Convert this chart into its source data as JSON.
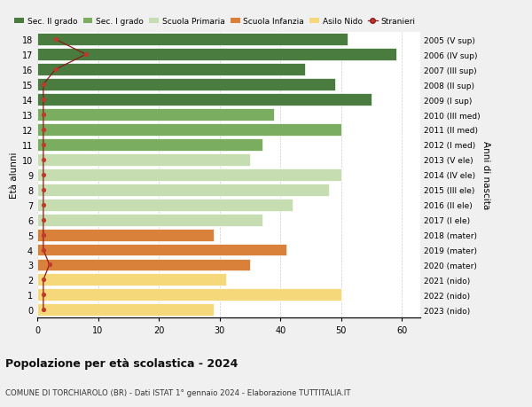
{
  "ages": [
    18,
    17,
    16,
    15,
    14,
    13,
    12,
    11,
    10,
    9,
    8,
    7,
    6,
    5,
    4,
    3,
    2,
    1,
    0
  ],
  "years": [
    "2005 (V sup)",
    "2006 (IV sup)",
    "2007 (III sup)",
    "2008 (II sup)",
    "2009 (I sup)",
    "2010 (III med)",
    "2011 (II med)",
    "2012 (I med)",
    "2013 (V ele)",
    "2014 (IV ele)",
    "2015 (III ele)",
    "2016 (II ele)",
    "2017 (I ele)",
    "2018 (mater)",
    "2019 (mater)",
    "2020 (mater)",
    "2021 (nido)",
    "2022 (nido)",
    "2023 (nido)"
  ],
  "bar_values": [
    51,
    59,
    44,
    49,
    55,
    39,
    50,
    37,
    35,
    50,
    48,
    42,
    37,
    29,
    41,
    35,
    31,
    50,
    29
  ],
  "bar_colors": [
    "#4a7c40",
    "#4a7c40",
    "#4a7c40",
    "#4a7c40",
    "#4a7c40",
    "#7aad5f",
    "#7aad5f",
    "#7aad5f",
    "#c5ddb0",
    "#c5ddb0",
    "#c5ddb0",
    "#c5ddb0",
    "#c5ddb0",
    "#d9813a",
    "#d9813a",
    "#d9813a",
    "#f5d87a",
    "#f5d87a",
    "#f5d87a"
  ],
  "stranieri_values": [
    3,
    8,
    3,
    1,
    1,
    1,
    1,
    1,
    1,
    1,
    1,
    1,
    1,
    1,
    1,
    2,
    1,
    1,
    1
  ],
  "legend_labels": [
    "Sec. II grado",
    "Sec. I grado",
    "Scuola Primaria",
    "Scuola Infanzia",
    "Asilo Nido",
    "Stranieri"
  ],
  "legend_colors": [
    "#4a7c40",
    "#7aad5f",
    "#c5ddb0",
    "#d9813a",
    "#f5d87a",
    "#c0392b"
  ],
  "title1": "Popolazione per età scolastica - 2024",
  "title2": "COMUNE DI TORCHIAROLO (BR) - Dati ISTAT 1° gennaio 2024 - Elaborazione TUTTITALIA.IT",
  "ylabel": "Età alunni",
  "ylabel2": "Anni di nascita",
  "background_color": "#f0f0f0",
  "bar_bg_color": "#ffffff"
}
